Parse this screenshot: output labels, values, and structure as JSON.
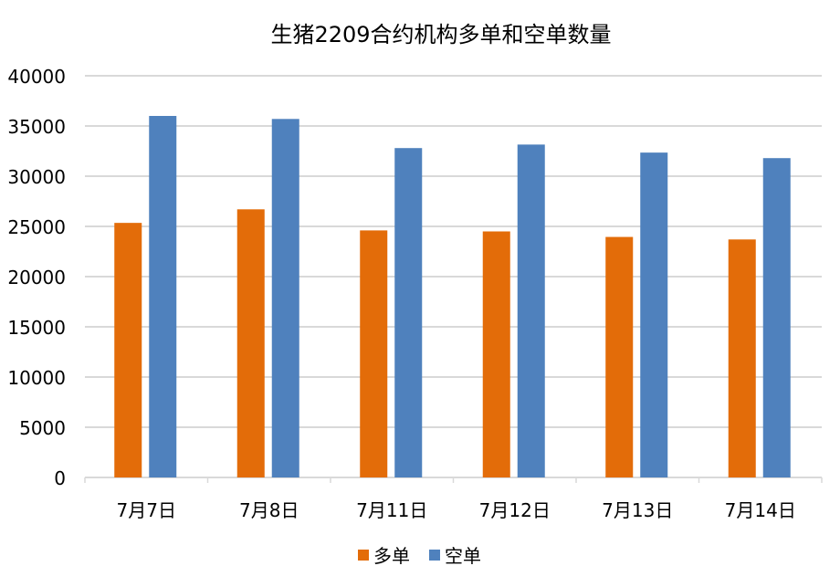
{
  "chart_data": {
    "type": "bar",
    "title": "生猪2209合约机构多单和空单数量",
    "xlabel": "",
    "ylabel": "",
    "categories": [
      "7月7日",
      "7月8日",
      "7月11日",
      "7月12日",
      "7月13日",
      "7月14日"
    ],
    "series": [
      {
        "name": "多单",
        "color": "#E36C09",
        "values": [
          25350,
          26700,
          24600,
          24500,
          23950,
          23700
        ]
      },
      {
        "name": "空单",
        "color": "#4F81BD",
        "values": [
          36000,
          35700,
          32800,
          33150,
          32350,
          31800
        ]
      }
    ],
    "ylim": [
      0,
      40000
    ],
    "yticks": [
      "0",
      "5000",
      "10000",
      "15000",
      "20000",
      "25000",
      "30000",
      "35000",
      "40000"
    ],
    "grid": true,
    "legend": "bottom"
  }
}
